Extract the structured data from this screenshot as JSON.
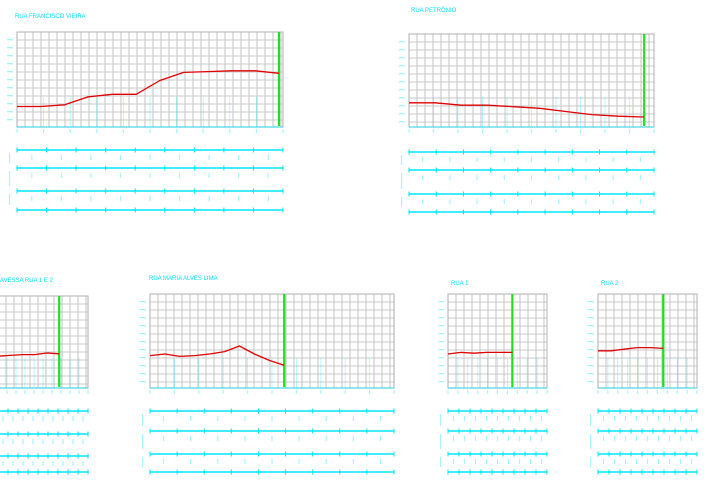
{
  "profiles": [
    {
      "id": "francisco-vieira",
      "title": "RUA FRANCISCO VIEIRA",
      "terrain": [
        0.13,
        0.13,
        0.15,
        0.25,
        0.28,
        0.28,
        0.45,
        0.55,
        0.56,
        0.57,
        0.57,
        0.54
      ],
      "marker": 0.985
    },
    {
      "id": "petronio",
      "title": "RUA PETRÔNIO",
      "terrain": [
        0.18,
        0.18,
        0.15,
        0.15,
        0.13,
        0.11,
        0.07,
        0.03,
        0.01,
        0.0
      ],
      "marker": 0.96
    },
    {
      "id": "travessa-rua-1-e-2",
      "title": "AVESSA RUA 1 E 2",
      "terrain": [
        0.28,
        0.29,
        0.3,
        0.3,
        0.32,
        0.31
      ],
      "marker": 0.68
    },
    {
      "id": "maria-alves-lima",
      "title": "RUA MARIA ALVES LIMA",
      "terrain": [
        0.28,
        0.3,
        0.27,
        0.28,
        0.3,
        0.33,
        0.4,
        0.3,
        0.22,
        0.16
      ],
      "marker": 0.55
    },
    {
      "id": "rua-1",
      "title": "RUA  1",
      "terrain": [
        0.3,
        0.32,
        0.31,
        0.32,
        0.32,
        0.32
      ],
      "marker": 0.65
    },
    {
      "id": "rua-2",
      "title": "RUA  2",
      "terrain": [
        0.34,
        0.34,
        0.36,
        0.38,
        0.38,
        0.37
      ],
      "marker": 0.66
    }
  ],
  "colors": {
    "grid": "#c8c8c8",
    "terrain_line": "#e00000",
    "station_marker": "#1ee01e",
    "annotation": "#00e5ff"
  }
}
